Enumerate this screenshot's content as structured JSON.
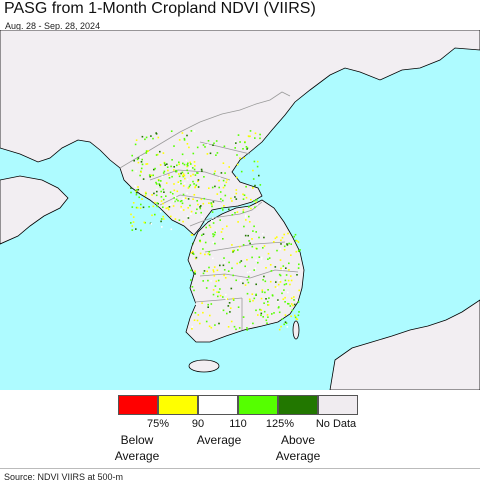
{
  "header": {
    "title": "PASG from 1-Month Cropland NDVI (VIIRS)",
    "date_range": "Aug. 28 - Sep. 28, 2024"
  },
  "map": {
    "ocean_color": "#aefbff",
    "land_color": "#f2eef2",
    "border_color": "#9a9a9a",
    "coast_color": "#000000"
  },
  "legend": {
    "swatches": [
      {
        "color": "#ff0000",
        "meaning": "below 75%"
      },
      {
        "color": "#ffff00",
        "meaning": "75-90%"
      },
      {
        "color": "#ffffff",
        "meaning": "90-110%"
      },
      {
        "color": "#55ff00",
        "meaning": "110-125%"
      },
      {
        "color": "#227700",
        "meaning": "above 125%"
      },
      {
        "color": "#f0ecf0",
        "meaning": "no data"
      }
    ],
    "ticks": [
      "75%",
      "90",
      "110",
      "125%"
    ],
    "no_data_label": "No Data",
    "below_average_label": "Below\nAverage",
    "average_label": "Average",
    "above_average_label": "Above\nAverage"
  },
  "footer": {
    "source": "Source: NDVI VIIRS at 500-m"
  }
}
